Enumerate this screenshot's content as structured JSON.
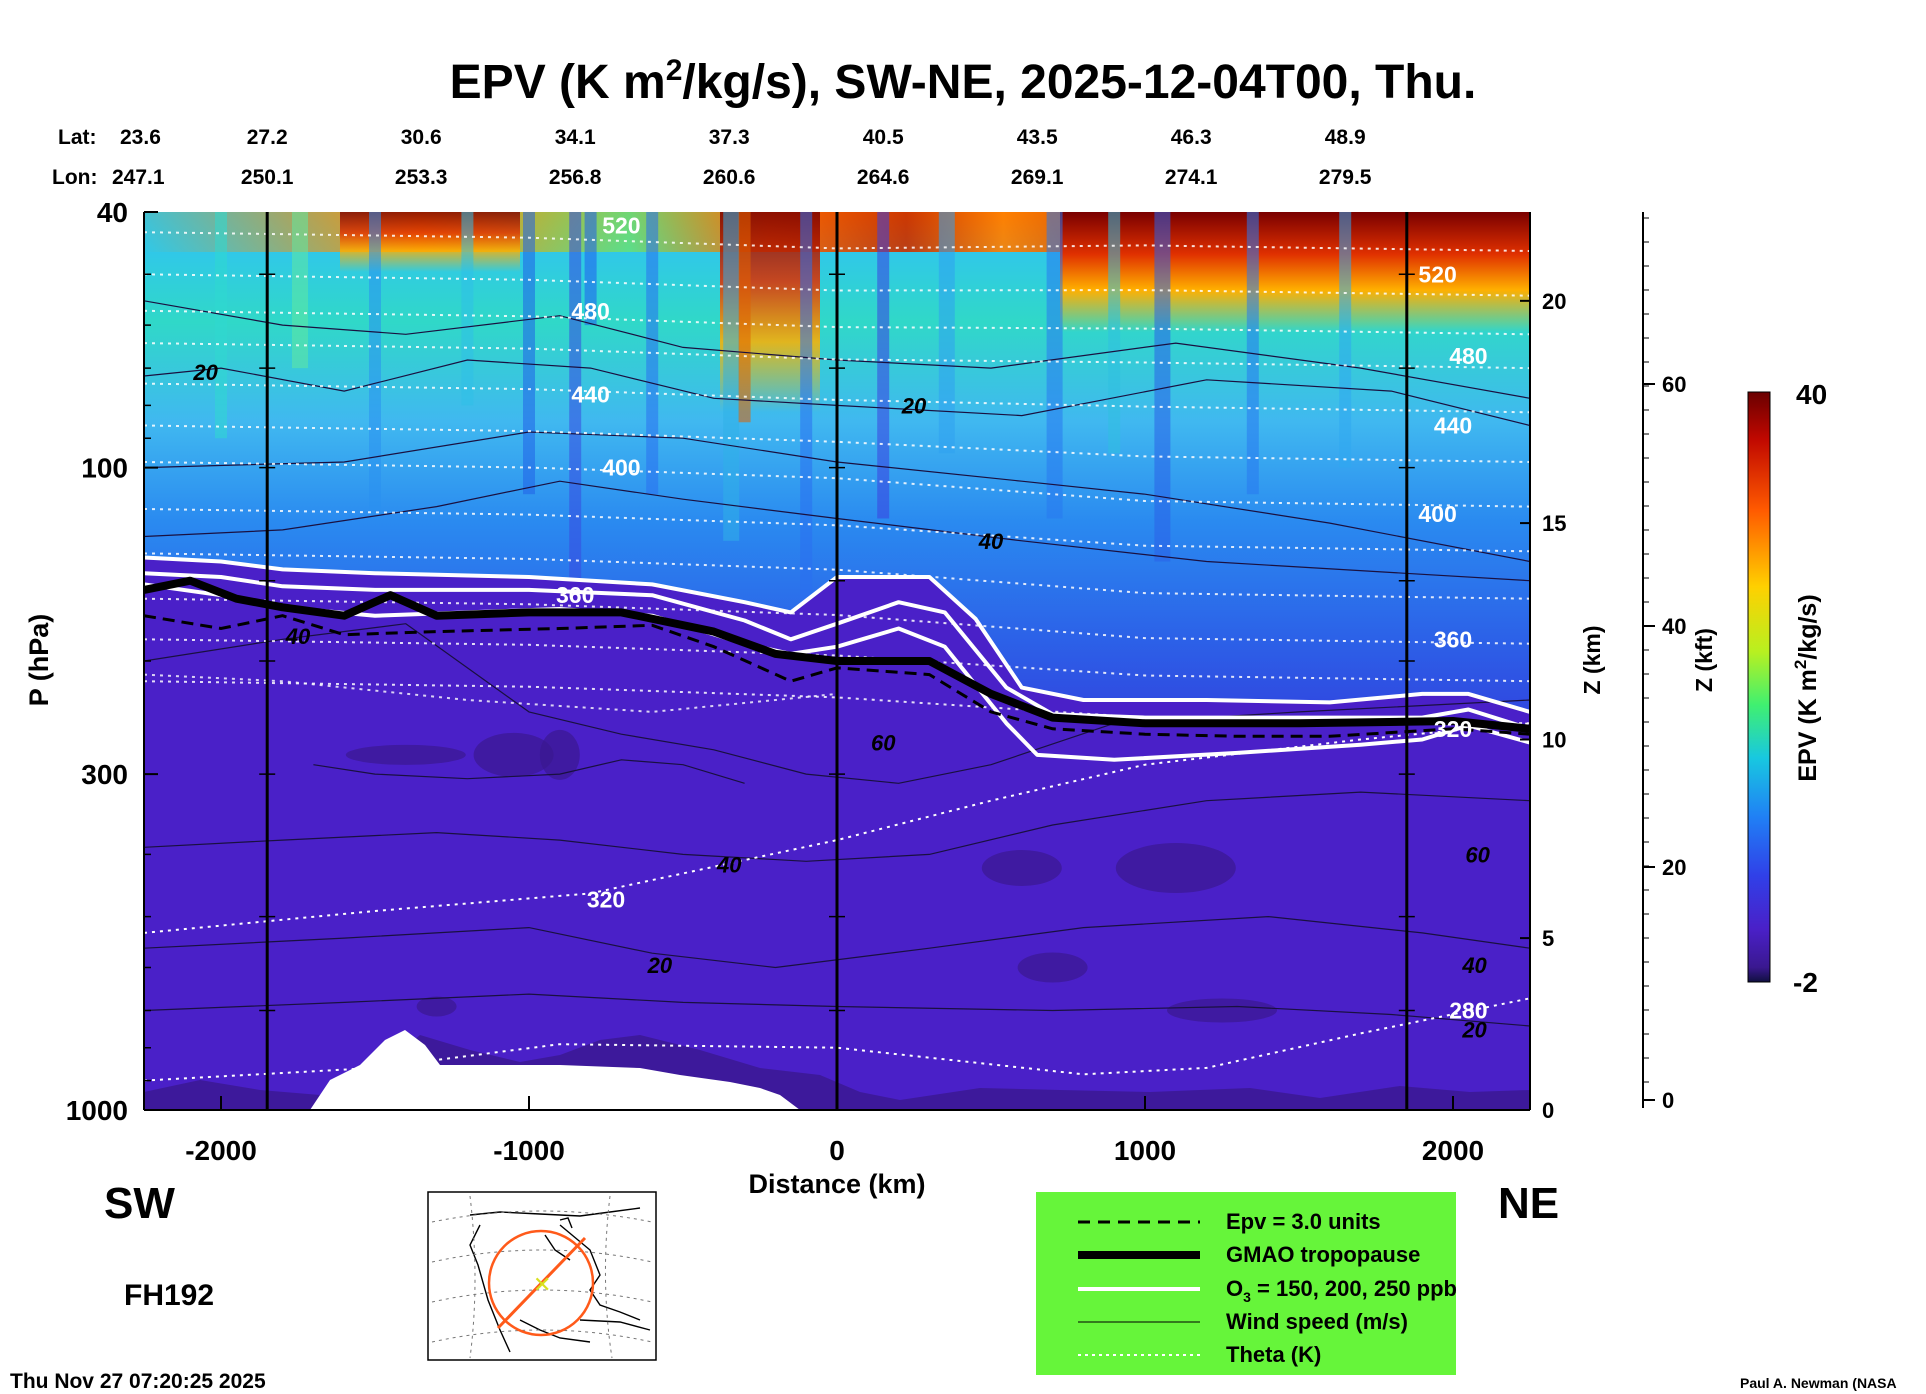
{
  "chart_data": {
    "type": "heatmap",
    "title_main": "EPV (K m",
    "title_sup": "2",
    "title_rest": "/kg/s), SW-NE, 2025-12-04T00, Thu.",
    "lat_label": "Lat:",
    "lon_label": "Lon:",
    "lat_values": [
      "23.6",
      "27.2",
      "30.6",
      "34.1",
      "37.3",
      "40.5",
      "43.5",
      "46.3",
      "48.9"
    ],
    "lon_values": [
      "247.1",
      "250.1",
      "253.3",
      "256.8",
      "260.6",
      "264.6",
      "269.1",
      "274.1",
      "279.5"
    ],
    "xlabel": "Distance (km)",
    "xlim": [
      -2250,
      2250
    ],
    "x_ticks": [
      -2000,
      -1000,
      0,
      1000,
      2000
    ],
    "x_tick_labels": [
      "-2000",
      "-1000",
      "0",
      "1000",
      "2000"
    ],
    "ylabel": "P (hPa)",
    "ylim": [
      1000,
      40
    ],
    "y_scale": "log",
    "y_ticks": [
      40,
      100,
      300,
      1000
    ],
    "y_tick_labels": [
      "40",
      "100",
      "300",
      "1000"
    ],
    "z_km_label": "Z (km)",
    "z_km_ticks": [
      "0",
      "5",
      "10",
      "15",
      "20"
    ],
    "z_kft_label": "Z (kft)",
    "z_kft_ticks": [
      "0",
      "20",
      "40",
      "60"
    ],
    "colorbar": {
      "label": "EPV (K m",
      "label_sup": "2",
      "label_rest": "/kg/s)",
      "min": "-2",
      "max": "40",
      "colors": [
        "#140a5a",
        "#3a1a9c",
        "#4a20c8",
        "#3030e0",
        "#2850f0",
        "#2478f5",
        "#20a0f0",
        "#18c8e0",
        "#20e0b0",
        "#40f080",
        "#80f040",
        "#c8f020",
        "#f8e010",
        "#ffb000",
        "#ff7800",
        "#f84000",
        "#d01000",
        "#a00000",
        "#6a0000"
      ]
    },
    "vertical_lines_km": [
      -1850,
      0,
      1850
    ],
    "theta_labels": [
      {
        "text": "520",
        "x": -700,
        "p": 42
      },
      {
        "text": "480",
        "x": -800,
        "p": 57
      },
      {
        "text": "440",
        "x": -800,
        "p": 77
      },
      {
        "text": "400",
        "x": -700,
        "p": 100
      },
      {
        "text": "360",
        "x": -850,
        "p": 158
      },
      {
        "text": "320",
        "x": -750,
        "p": 470
      },
      {
        "text": "520",
        "x": 1950,
        "p": 50
      },
      {
        "text": "480",
        "x": 2050,
        "p": 67
      },
      {
        "text": "440",
        "x": 2000,
        "p": 86
      },
      {
        "text": "400",
        "x": 1950,
        "p": 118
      },
      {
        "text": "360",
        "x": 2000,
        "p": 185
      },
      {
        "text": "320",
        "x": 2000,
        "p": 255
      },
      {
        "text": "280",
        "x": 2050,
        "p": 700
      }
    ],
    "wind_labels": [
      {
        "text": "20",
        "x": -2050,
        "p": 71
      },
      {
        "text": "40",
        "x": -1750,
        "p": 183
      },
      {
        "text": "20",
        "x": 250,
        "p": 80
      },
      {
        "text": "40",
        "x": 500,
        "p": 130
      },
      {
        "text": "60",
        "x": 150,
        "p": 268
      },
      {
        "text": "40",
        "x": -350,
        "p": 415
      },
      {
        "text": "20",
        "x": -575,
        "p": 595
      },
      {
        "text": "60",
        "x": 2080,
        "p": 400
      },
      {
        "text": "40",
        "x": 2070,
        "p": 595
      },
      {
        "text": "20",
        "x": 2070,
        "p": 750
      }
    ],
    "tropopause_km_p": [
      [
        -2250,
        155
      ],
      [
        -2100,
        150
      ],
      [
        -1950,
        160
      ],
      [
        -1800,
        165
      ],
      [
        -1600,
        170
      ],
      [
        -1450,
        158
      ],
      [
        -1300,
        170
      ],
      [
        -1000,
        168
      ],
      [
        -700,
        168
      ],
      [
        -400,
        180
      ],
      [
        -200,
        195
      ],
      [
        0,
        200
      ],
      [
        300,
        200
      ],
      [
        500,
        225
      ],
      [
        700,
        245
      ],
      [
        1000,
        250
      ],
      [
        1500,
        250
      ],
      [
        2000,
        248
      ],
      [
        2250,
        255
      ]
    ],
    "epv3_km_p": [
      [
        -2250,
        170
      ],
      [
        -2000,
        178
      ],
      [
        -1800,
        170
      ],
      [
        -1600,
        182
      ],
      [
        -1300,
        180
      ],
      [
        -900,
        178
      ],
      [
        -600,
        176
      ],
      [
        -400,
        190
      ],
      [
        -150,
        215
      ],
      [
        0,
        205
      ],
      [
        300,
        210
      ],
      [
        500,
        240
      ],
      [
        700,
        255
      ],
      [
        1000,
        260
      ],
      [
        1300,
        262
      ],
      [
        1600,
        262
      ],
      [
        2000,
        255
      ],
      [
        2250,
        260
      ]
    ],
    "o3_km_p": {
      "150": [
        [
          -2250,
          138
        ],
        [
          -2000,
          140
        ],
        [
          -1800,
          144
        ],
        [
          -1500,
          146
        ],
        [
          -1000,
          148
        ],
        [
          -600,
          152
        ],
        [
          -300,
          162
        ],
        [
          -150,
          168
        ],
        [
          0,
          148
        ],
        [
          300,
          148
        ],
        [
          450,
          172
        ],
        [
          600,
          220
        ],
        [
          800,
          230
        ],
        [
          1200,
          230
        ],
        [
          1600,
          232
        ],
        [
          1900,
          225
        ],
        [
          2050,
          225
        ],
        [
          2250,
          240
        ]
      ],
      "200": [
        [
          -2250,
          146
        ],
        [
          -2000,
          148
        ],
        [
          -1800,
          153
        ],
        [
          -1500,
          155
        ],
        [
          -1000,
          155
        ],
        [
          -600,
          158
        ],
        [
          -300,
          173
        ],
        [
          -150,
          185
        ],
        [
          0,
          175
        ],
        [
          200,
          162
        ],
        [
          350,
          168
        ],
        [
          550,
          220
        ],
        [
          700,
          242
        ],
        [
          1000,
          245
        ],
        [
          1400,
          245
        ],
        [
          1900,
          245
        ],
        [
          2050,
          238
        ],
        [
          2250,
          255
        ]
      ],
      "250": [
        [
          -2250,
          152
        ],
        [
          -2000,
          158
        ],
        [
          -1800,
          165
        ],
        [
          -1500,
          170
        ],
        [
          -1200,
          168
        ],
        [
          -900,
          166
        ],
        [
          -600,
          170
        ],
        [
          -300,
          188
        ],
        [
          -150,
          195
        ],
        [
          0,
          190
        ],
        [
          200,
          178
        ],
        [
          350,
          190
        ],
        [
          550,
          250
        ],
        [
          650,
          280
        ],
        [
          900,
          285
        ],
        [
          1300,
          278
        ],
        [
          1700,
          270
        ],
        [
          1900,
          265
        ],
        [
          2050,
          252
        ],
        [
          2250,
          268
        ]
      ]
    },
    "legend": {
      "items": [
        {
          "style": "dashed",
          "label": "Epv = 3.0 units"
        },
        {
          "style": "thick-black",
          "label": "GMAO tropopause"
        },
        {
          "style": "white",
          "label_main": "O",
          "label_sub": "3",
          "label_rest": " = 150, 200, 250 ppb"
        },
        {
          "style": "thin-black",
          "label": "Wind speed (m/s)"
        },
        {
          "style": "white-dotted",
          "label": "Theta (K)"
        }
      ]
    }
  },
  "labels": {
    "sw": "SW",
    "ne": "NE",
    "forecast_hour": "FH192",
    "timestamp": "Thu Nov 27 07:20:25 2025",
    "credit": "Paul A. Newman (NASA"
  },
  "colors": {
    "legend_bg": "#66f53a",
    "purple": "#4a20c8",
    "orange_path": "#ff5a1a",
    "center_marker": "#d8e020"
  }
}
